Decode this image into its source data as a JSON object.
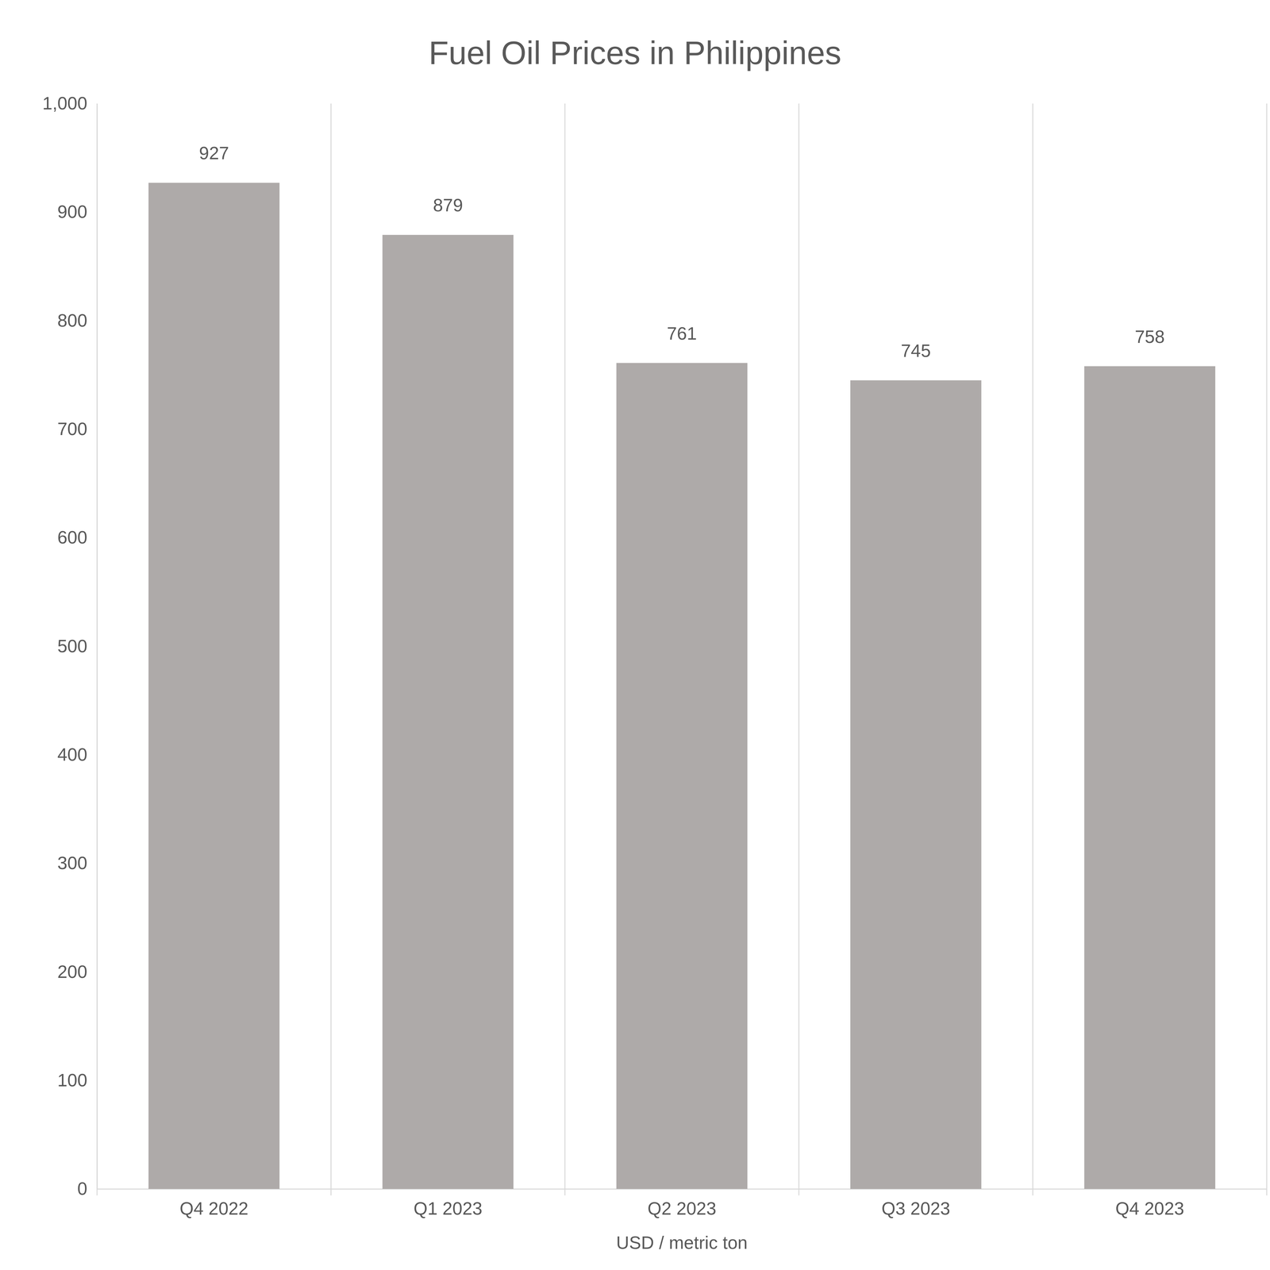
{
  "chart_data": {
    "type": "bar",
    "title": "Fuel Oil Prices in Philippines",
    "x_label": "USD / metric ton",
    "categories": [
      "Q4 2022",
      "Q1 2023",
      "Q2 2023",
      "Q3 2023",
      "Q4 2023"
    ],
    "values": [
      927,
      879,
      761,
      745,
      758
    ],
    "color": "#aeaaa9",
    "ylim": [
      0,
      1000
    ],
    "yticks": [
      0,
      100,
      200,
      300,
      400,
      500,
      600,
      700,
      800,
      900,
      {
        "value": 1000,
        "label": "1,000"
      }
    ],
    "grid": true,
    "data_labels": true
  }
}
